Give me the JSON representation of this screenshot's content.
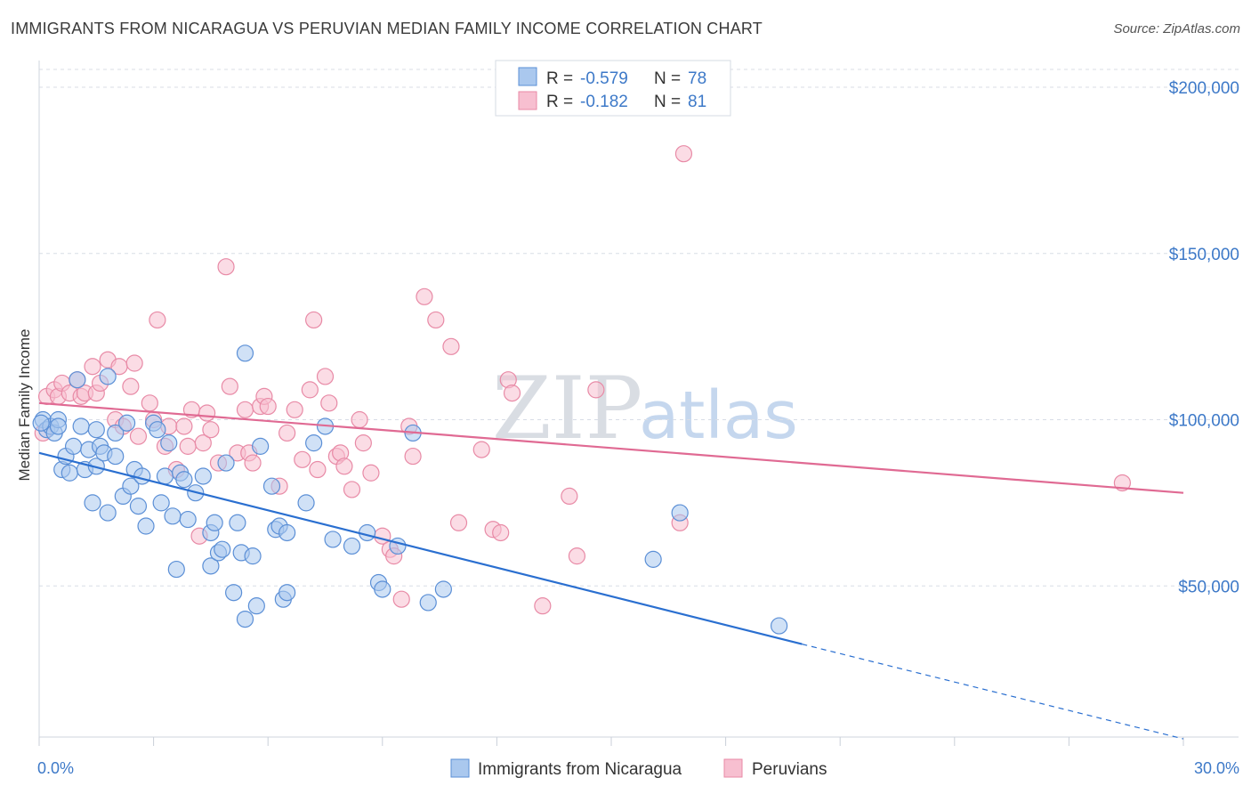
{
  "title": "IMMIGRANTS FROM NICARAGUA VS PERUVIAN MEDIAN FAMILY INCOME CORRELATION CHART",
  "source": "Source: ZipAtlas.com",
  "watermark": {
    "zip": "ZIP",
    "atlas": "atlas"
  },
  "colors": {
    "blue_fill": "#aac8ee",
    "blue_stroke": "#5b8fd6",
    "blue_line": "#2a6fd0",
    "pink_fill": "#f7bfd0",
    "pink_stroke": "#e88aa6",
    "pink_line": "#e06a93",
    "grid": "#d8dde6",
    "tick_text": "#3d79c8"
  },
  "legend": {
    "rows": [
      {
        "r_label": "R =",
        "r_value": "-0.579",
        "n_label": "N =",
        "n_value": "78"
      },
      {
        "r_label": "R =",
        "r_value": "-0.182",
        "n_label": "N =",
        "n_value": "81"
      }
    ]
  },
  "chart_data": {
    "type": "scatter",
    "title": "IMMIGRANTS FROM NICARAGUA VS PERUVIAN MEDIAN FAMILY INCOME CORRELATION CHART",
    "xlabel": "",
    "ylabel": "Median Family Income",
    "xlim": [
      0,
      30
    ],
    "ylim": [
      0,
      210000
    ],
    "x_tick_labels": [
      "0.0%",
      "30.0%"
    ],
    "y_ticks": [
      50000,
      100000,
      150000,
      200000
    ],
    "y_tick_labels": [
      "$50,000",
      "$100,000",
      "$150,000",
      "$200,000"
    ],
    "grid": true,
    "legend_position": "top-center",
    "series": [
      {
        "name": "Immigrants from Nicaragua",
        "r": -0.579,
        "n": 78,
        "trend": {
          "x0": 0,
          "y0": 90000,
          "x1": 20.0,
          "y1": 32500,
          "dash_x1": 30,
          "dash_y1": 4000
        },
        "points": [
          [
            0.1,
            100000
          ],
          [
            0.2,
            97000
          ],
          [
            0.3,
            98000
          ],
          [
            0.4,
            96000
          ],
          [
            0.5,
            100000
          ],
          [
            0.5,
            98000
          ],
          [
            0.6,
            85000
          ],
          [
            0.7,
            89000
          ],
          [
            0.8,
            84000
          ],
          [
            0.9,
            92000
          ],
          [
            1.0,
            112000
          ],
          [
            1.1,
            98000
          ],
          [
            1.2,
            85000
          ],
          [
            1.3,
            91000
          ],
          [
            1.4,
            75000
          ],
          [
            1.5,
            97000
          ],
          [
            1.5,
            86000
          ],
          [
            1.6,
            92000
          ],
          [
            1.7,
            90000
          ],
          [
            1.8,
            72000
          ],
          [
            1.8,
            113000
          ],
          [
            2.0,
            89000
          ],
          [
            2.0,
            96000
          ],
          [
            2.2,
            77000
          ],
          [
            2.3,
            99000
          ],
          [
            2.4,
            80000
          ],
          [
            2.5,
            85000
          ],
          [
            2.6,
            74000
          ],
          [
            2.7,
            83000
          ],
          [
            2.8,
            68000
          ],
          [
            3.0,
            99000
          ],
          [
            3.1,
            97000
          ],
          [
            3.2,
            75000
          ],
          [
            3.3,
            83000
          ],
          [
            3.4,
            93000
          ],
          [
            3.5,
            71000
          ],
          [
            3.6,
            55000
          ],
          [
            3.7,
            84000
          ],
          [
            3.8,
            82000
          ],
          [
            3.9,
            70000
          ],
          [
            4.1,
            78000
          ],
          [
            4.3,
            83000
          ],
          [
            4.5,
            66000
          ],
          [
            4.5,
            56000
          ],
          [
            4.6,
            69000
          ],
          [
            4.7,
            60000
          ],
          [
            4.8,
            61000
          ],
          [
            4.9,
            87000
          ],
          [
            5.1,
            48000
          ],
          [
            5.2,
            69000
          ],
          [
            5.3,
            60000
          ],
          [
            5.4,
            40000
          ],
          [
            5.4,
            120000
          ],
          [
            5.6,
            59000
          ],
          [
            5.7,
            44000
          ],
          [
            5.8,
            92000
          ],
          [
            6.1,
            80000
          ],
          [
            6.2,
            67000
          ],
          [
            6.3,
            68000
          ],
          [
            6.4,
            46000
          ],
          [
            6.5,
            48000
          ],
          [
            6.5,
            66000
          ],
          [
            7.0,
            75000
          ],
          [
            7.2,
            93000
          ],
          [
            7.5,
            98000
          ],
          [
            7.7,
            64000
          ],
          [
            8.2,
            62000
          ],
          [
            8.6,
            66000
          ],
          [
            8.9,
            51000
          ],
          [
            9.0,
            49000
          ],
          [
            9.4,
            62000
          ],
          [
            9.8,
            96000
          ],
          [
            10.2,
            45000
          ],
          [
            10.6,
            49000
          ],
          [
            16.1,
            58000
          ],
          [
            16.8,
            72000
          ],
          [
            19.4,
            38000
          ],
          [
            0.05,
            99000
          ]
        ]
      },
      {
        "name": "Peruvians",
        "r": -0.182,
        "n": 81,
        "trend": {
          "x0": 0,
          "y0": 105000,
          "x1": 30,
          "y1": 78000
        },
        "points": [
          [
            0.1,
            96000
          ],
          [
            0.2,
            107000
          ],
          [
            0.4,
            109000
          ],
          [
            0.5,
            107000
          ],
          [
            0.6,
            111000
          ],
          [
            0.8,
            108000
          ],
          [
            1.0,
            112000
          ],
          [
            1.1,
            107000
          ],
          [
            1.2,
            108000
          ],
          [
            1.4,
            116000
          ],
          [
            1.5,
            108000
          ],
          [
            1.6,
            111000
          ],
          [
            1.8,
            118000
          ],
          [
            2.0,
            100000
          ],
          [
            2.1,
            116000
          ],
          [
            2.2,
            98000
          ],
          [
            2.4,
            110000
          ],
          [
            2.5,
            117000
          ],
          [
            2.6,
            95000
          ],
          [
            2.9,
            105000
          ],
          [
            3.0,
            100000
          ],
          [
            3.1,
            130000
          ],
          [
            3.3,
            92000
          ],
          [
            3.4,
            98000
          ],
          [
            3.6,
            85000
          ],
          [
            3.8,
            98000
          ],
          [
            3.9,
            92000
          ],
          [
            4.0,
            103000
          ],
          [
            4.2,
            65000
          ],
          [
            4.3,
            93000
          ],
          [
            4.4,
            102000
          ],
          [
            4.5,
            97000
          ],
          [
            4.7,
            87000
          ],
          [
            4.9,
            146000
          ],
          [
            5.0,
            110000
          ],
          [
            5.2,
            90000
          ],
          [
            5.4,
            103000
          ],
          [
            5.5,
            90000
          ],
          [
            5.6,
            87000
          ],
          [
            5.8,
            104000
          ],
          [
            5.9,
            107000
          ],
          [
            6.0,
            104000
          ],
          [
            6.3,
            80000
          ],
          [
            6.5,
            96000
          ],
          [
            6.7,
            103000
          ],
          [
            6.9,
            88000
          ],
          [
            7.1,
            109000
          ],
          [
            7.2,
            130000
          ],
          [
            7.3,
            85000
          ],
          [
            7.5,
            113000
          ],
          [
            7.6,
            105000
          ],
          [
            7.8,
            89000
          ],
          [
            7.9,
            90000
          ],
          [
            8.0,
            86000
          ],
          [
            8.2,
            79000
          ],
          [
            8.4,
            100000
          ],
          [
            8.5,
            93000
          ],
          [
            8.7,
            84000
          ],
          [
            9.0,
            65000
          ],
          [
            9.2,
            61000
          ],
          [
            9.3,
            59000
          ],
          [
            9.5,
            46000
          ],
          [
            9.7,
            98000
          ],
          [
            9.8,
            89000
          ],
          [
            10.1,
            137000
          ],
          [
            10.4,
            130000
          ],
          [
            10.8,
            122000
          ],
          [
            11.0,
            69000
          ],
          [
            11.6,
            91000
          ],
          [
            11.9,
            67000
          ],
          [
            12.1,
            66000
          ],
          [
            12.3,
            112000
          ],
          [
            12.4,
            108000
          ],
          [
            13.2,
            44000
          ],
          [
            13.9,
            77000
          ],
          [
            14.1,
            59000
          ],
          [
            14.6,
            109000
          ],
          [
            16.2,
            198000
          ],
          [
            16.9,
            180000
          ],
          [
            16.8,
            69000
          ],
          [
            28.4,
            81000
          ]
        ]
      }
    ]
  },
  "bottom_legend": {
    "items": [
      {
        "label": "Immigrants from Nicaragua"
      },
      {
        "label": "Peruvians"
      }
    ]
  }
}
